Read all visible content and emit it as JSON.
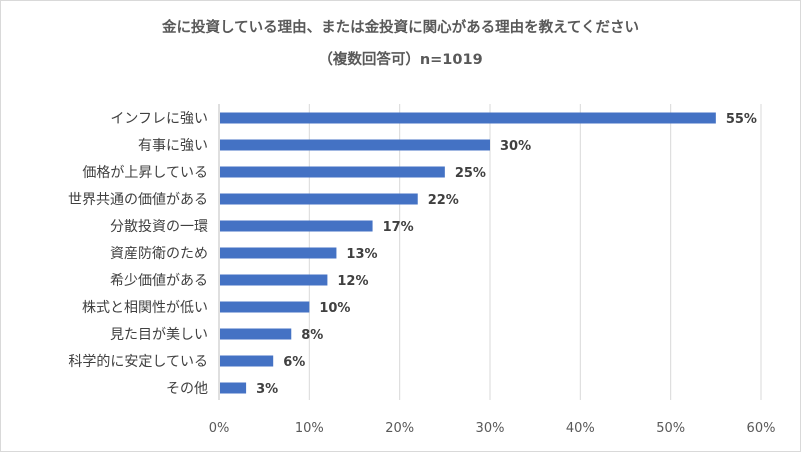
{
  "chart_data": {
    "type": "bar",
    "orientation": "horizontal",
    "title": "金に投資している理由、または金投資に関心がある理由を教えてください",
    "subtitle": "（複数回答可）n=1019",
    "categories": [
      "インフレに強い",
      "有事に強い",
      "価格が上昇している",
      "世界共通の価値がある",
      "分散投資の一環",
      "資産防衛のため",
      "希少価値がある",
      "株式と相関性が低い",
      "見た目が美しい",
      "科学的に安定している",
      "その他"
    ],
    "values": [
      55,
      30,
      25,
      22,
      17,
      13,
      12,
      10,
      8,
      6,
      3
    ],
    "value_labels": [
      "55%",
      "30%",
      "25%",
      "22%",
      "17%",
      "13%",
      "12%",
      "10%",
      "8%",
      "6%",
      "3%"
    ],
    "x_ticks": [
      0,
      10,
      20,
      30,
      40,
      50,
      60
    ],
    "x_tick_labels": [
      "0%",
      "10%",
      "20%",
      "30%",
      "40%",
      "50%",
      "60%"
    ],
    "xlim": [
      0,
      60
    ],
    "grid": true,
    "legend": "none",
    "bar_color": "#4472c4",
    "grid_color": "#d9d9d9"
  }
}
